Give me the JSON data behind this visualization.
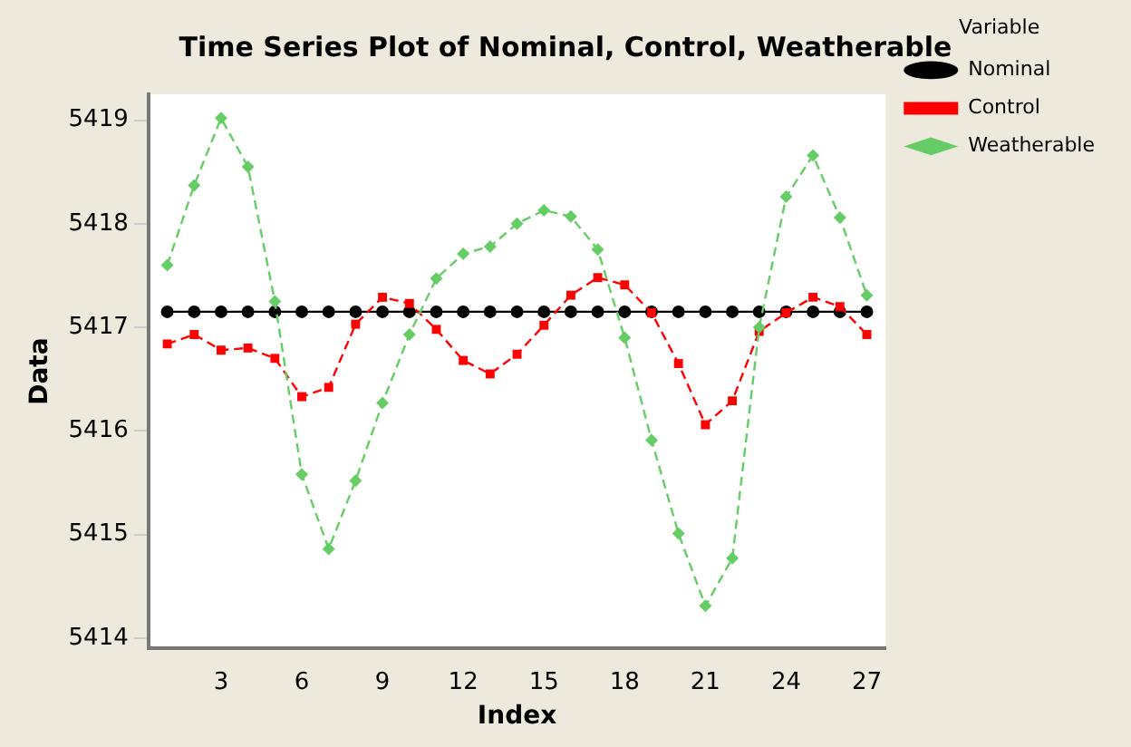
{
  "chart_data": {
    "type": "line",
    "title": "Time Series Plot of Nominal, Control, Weatherable",
    "xlabel": "Index",
    "ylabel": "Data",
    "legend_title": "Variable",
    "legend": "right",
    "grid": false,
    "x": [
      1,
      2,
      3,
      4,
      5,
      6,
      7,
      8,
      9,
      10,
      11,
      12,
      13,
      14,
      15,
      16,
      17,
      18,
      19,
      20,
      21,
      22,
      23,
      24,
      25,
      26,
      27
    ],
    "xlim": [
      0.3,
      27.7
    ],
    "xticks": [
      3,
      6,
      9,
      12,
      15,
      18,
      21,
      24,
      27
    ],
    "ylim": [
      5413.9,
      5419.25
    ],
    "yticks": [
      5414,
      5415,
      5416,
      5417,
      5418,
      5419
    ],
    "series": [
      {
        "name": "Nominal",
        "color": "#000000",
        "marker": "circle",
        "line_style": "solid",
        "values": [
          5417.15,
          5417.15,
          5417.15,
          5417.15,
          5417.15,
          5417.15,
          5417.15,
          5417.15,
          5417.15,
          5417.15,
          5417.15,
          5417.15,
          5417.15,
          5417.15,
          5417.15,
          5417.15,
          5417.15,
          5417.15,
          5417.15,
          5417.15,
          5417.15,
          5417.15,
          5417.15,
          5417.15,
          5417.15,
          5417.15,
          5417.15
        ]
      },
      {
        "name": "Control",
        "color": "#ff0000",
        "marker": "square",
        "line_style": "dashed",
        "values": [
          5416.84,
          5416.93,
          5416.78,
          5416.8,
          5416.7,
          5416.33,
          5416.42,
          5417.03,
          5417.29,
          5417.23,
          5416.98,
          5416.68,
          5416.55,
          5416.74,
          5417.02,
          5417.31,
          5417.48,
          5417.41,
          5417.14,
          5416.65,
          5416.06,
          5416.29,
          5416.96,
          5417.14,
          5417.29,
          5417.2,
          5416.93
        ]
      },
      {
        "name": "Weatherable",
        "color": "#66cc66",
        "marker": "diamond",
        "line_style": "dashed",
        "values": [
          5417.6,
          5418.37,
          5419.02,
          5418.55,
          5417.25,
          5415.58,
          5414.86,
          5415.52,
          5416.27,
          5416.93,
          5417.47,
          5417.71,
          5417.78,
          5418.0,
          5418.13,
          5418.07,
          5417.75,
          5416.9,
          5415.91,
          5415.01,
          5414.31,
          5414.77,
          5417.0,
          5418.26,
          5418.66,
          5418.06,
          5417.31
        ]
      }
    ]
  }
}
